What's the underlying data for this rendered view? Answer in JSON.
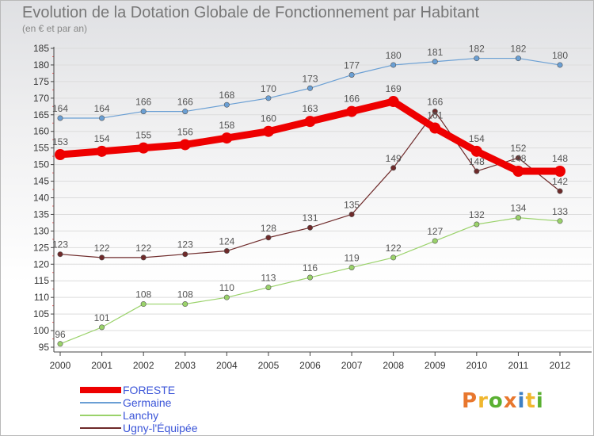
{
  "header": {
    "title": "Evolution de la Dotation Globale de Fonctionnement par Habitant",
    "subtitle": "(en € et par an)"
  },
  "logo": {
    "text": "Proxiti",
    "colors": [
      "#e8772e",
      "#f0b72f",
      "#5ab032",
      "#e8772e",
      "#3c7fc4",
      "#f0b72f",
      "#5ab032"
    ]
  },
  "chart_data": {
    "type": "line",
    "title": "Evolution de la Dotation Globale de Fonctionnement par Habitant",
    "subtitle": "(en € et par an)",
    "xlabel": "",
    "ylabel": "",
    "x": [
      "2000",
      "2001",
      "2002",
      "2003",
      "2004",
      "2005",
      "2006",
      "2007",
      "2008",
      "2009",
      "2010",
      "2011",
      "2012"
    ],
    "ylim": [
      95,
      185
    ],
    "yticks": [
      "95",
      "100",
      "105",
      "110",
      "115",
      "120",
      "125",
      "130",
      "135",
      "140",
      "145",
      "150",
      "155",
      "160",
      "165",
      "170",
      "175",
      "180",
      "185"
    ],
    "legend_position": "bottom-left",
    "grid": "horizontal",
    "series": [
      {
        "name": "Germaine",
        "color": "#6a9fd4",
        "emphasis": false,
        "values": [
          164,
          164,
          166,
          166,
          168,
          170,
          173,
          177,
          180,
          181,
          182,
          182,
          180
        ],
        "labels": [
          "164",
          "164",
          "166",
          "166",
          "168",
          "170",
          "173",
          "177",
          "180",
          "181",
          "182",
          "182",
          "180"
        ]
      },
      {
        "name": "Lanchy",
        "color": "#9ad26a",
        "emphasis": false,
        "values": [
          96,
          101,
          108,
          108,
          110,
          113,
          116,
          119,
          122,
          127,
          132,
          134,
          133
        ],
        "labels": [
          "96",
          "101",
          "108",
          "108",
          "110",
          "113",
          "116",
          "119",
          "122",
          "127",
          "132",
          "134",
          "133"
        ]
      },
      {
        "name": "Ugny-l'Équipée",
        "color": "#6e2a2a",
        "emphasis": false,
        "values": [
          123,
          122,
          122,
          123,
          124,
          128,
          131,
          135,
          149,
          166,
          148,
          152,
          142
        ],
        "labels": [
          "123",
          "122",
          "122",
          "123",
          "124",
          "128",
          "131",
          "135",
          "149",
          "166",
          "148",
          "152",
          "142"
        ]
      },
      {
        "name": "FORESTE",
        "color": "#ee0000",
        "emphasis": true,
        "values": [
          153,
          154,
          155,
          156,
          158,
          160,
          163,
          166,
          169,
          161,
          154,
          148,
          148
        ],
        "labels": [
          "153",
          "154",
          "155",
          "156",
          "158",
          "160",
          "163",
          "166",
          "169",
          "161",
          "154",
          "148",
          "148"
        ]
      }
    ],
    "legend": [
      {
        "name": "FORESTE",
        "color": "#ee0000",
        "emphasis": true
      },
      {
        "name": "Germaine",
        "color": "#6a9fd4",
        "emphasis": false
      },
      {
        "name": "Lanchy",
        "color": "#9ad26a",
        "emphasis": false
      },
      {
        "name": "Ugny-l'Équipée",
        "color": "#6e2a2a",
        "emphasis": false
      }
    ]
  }
}
